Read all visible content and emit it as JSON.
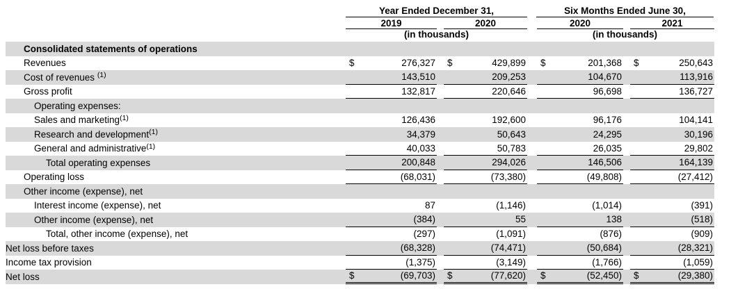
{
  "header": {
    "groups": [
      {
        "title": "Year Ended December 31,",
        "columns": [
          "2019",
          "2020"
        ],
        "note": "(in thousands)"
      },
      {
        "title": "Six Months Ended June 30,",
        "columns": [
          "2020",
          "2021"
        ],
        "note": "(in thousands)"
      }
    ]
  },
  "table": {
    "rows": [
      {
        "label": "Consolidated statements of operations",
        "footnote": "",
        "footnote_space": false,
        "indent": 1,
        "bold": true,
        "dollar": false,
        "rule": "none",
        "shaded": true,
        "values": [
          "",
          "",
          "",
          ""
        ]
      },
      {
        "label": "Revenues",
        "footnote": "",
        "footnote_space": false,
        "indent": 1,
        "bold": false,
        "dollar": true,
        "rule": "none",
        "shaded": false,
        "values": [
          "276,327",
          "429,899",
          "201,368",
          "250,643"
        ]
      },
      {
        "label": "Cost of revenues",
        "footnote": "(1)",
        "footnote_space": true,
        "indent": 1,
        "bold": false,
        "dollar": false,
        "rule": "single",
        "shaded": true,
        "values": [
          "143,510",
          "209,253",
          "104,670",
          "113,916"
        ]
      },
      {
        "label": "Gross profit",
        "footnote": "",
        "footnote_space": false,
        "indent": 1,
        "bold": false,
        "dollar": false,
        "rule": "single",
        "shaded": false,
        "values": [
          "132,817",
          "220,646",
          "96,698",
          "136,727"
        ]
      },
      {
        "label": "Operating expenses:",
        "footnote": "",
        "footnote_space": false,
        "indent": 2,
        "bold": false,
        "dollar": false,
        "rule": "none",
        "shaded": true,
        "values": [
          "",
          "",
          "",
          ""
        ]
      },
      {
        "label": "Sales and marketing",
        "footnote": "(1)",
        "footnote_space": false,
        "indent": 2,
        "bold": false,
        "dollar": false,
        "rule": "none",
        "shaded": false,
        "values": [
          "126,436",
          "192,600",
          "96,176",
          "104,141"
        ]
      },
      {
        "label": "Research and development",
        "footnote": "(1)",
        "footnote_space": false,
        "indent": 2,
        "bold": false,
        "dollar": false,
        "rule": "none",
        "shaded": true,
        "values": [
          "34,379",
          "50,643",
          "24,295",
          "30,196"
        ]
      },
      {
        "label": "General and administrative",
        "footnote": "(1)",
        "footnote_space": false,
        "indent": 2,
        "bold": false,
        "dollar": false,
        "rule": "single",
        "shaded": false,
        "values": [
          "40,033",
          "50,783",
          "26,035",
          "29,802"
        ]
      },
      {
        "label": "Total operating expenses",
        "footnote": "",
        "footnote_space": false,
        "indent": 3,
        "bold": false,
        "dollar": false,
        "rule": "single",
        "shaded": true,
        "values": [
          "200,848",
          "294,026",
          "146,506",
          "164,139"
        ]
      },
      {
        "label": "Operating loss",
        "footnote": "",
        "footnote_space": false,
        "indent": 1,
        "bold": false,
        "dollar": false,
        "rule": "single",
        "shaded": false,
        "values": [
          "(68,031)",
          "(73,380)",
          "(49,808)",
          "(27,412)"
        ]
      },
      {
        "label": "Other income (expense), net",
        "footnote": "",
        "footnote_space": false,
        "indent": 1,
        "bold": false,
        "dollar": false,
        "rule": "none",
        "shaded": true,
        "values": [
          "",
          "",
          "",
          ""
        ]
      },
      {
        "label": "Interest income (expense), net",
        "footnote": "",
        "footnote_space": false,
        "indent": 2,
        "bold": false,
        "dollar": false,
        "rule": "none",
        "shaded": false,
        "values": [
          "87",
          "(1,146)",
          "(1,014)",
          "(391)"
        ]
      },
      {
        "label": "Other income (expense), net",
        "footnote": "",
        "footnote_space": false,
        "indent": 2,
        "bold": false,
        "dollar": false,
        "rule": "single",
        "shaded": true,
        "values": [
          "(384)",
          "55",
          "138",
          "(518)"
        ]
      },
      {
        "label": "Total, other income (expense), net",
        "footnote": "",
        "footnote_space": false,
        "indent": 3,
        "bold": false,
        "dollar": false,
        "rule": "none",
        "shaded": false,
        "values": [
          "(297)",
          "(1,091)",
          "(876)",
          "(909)"
        ]
      },
      {
        "label": "Net loss before taxes",
        "footnote": "",
        "footnote_space": false,
        "indent": 0,
        "bold": false,
        "dollar": false,
        "rule": "single",
        "shaded": true,
        "values": [
          "(68,328)",
          "(74,471)",
          "(50,684)",
          "(28,321)"
        ]
      },
      {
        "label": "Income tax provision",
        "footnote": "",
        "footnote_space": false,
        "indent": 0,
        "bold": false,
        "dollar": false,
        "rule": "single",
        "shaded": false,
        "values": [
          "(1,375)",
          "(3,149)",
          "(1,766)",
          "(1,059)"
        ]
      },
      {
        "label": "Net loss",
        "footnote": "",
        "footnote_space": false,
        "indent": 0,
        "bold": false,
        "dollar": true,
        "rule": "double",
        "shaded": true,
        "values": [
          "(69,703)",
          "(77,620)",
          "(52,450)",
          "(29,380)"
        ]
      }
    ]
  },
  "currency_symbol": "$"
}
